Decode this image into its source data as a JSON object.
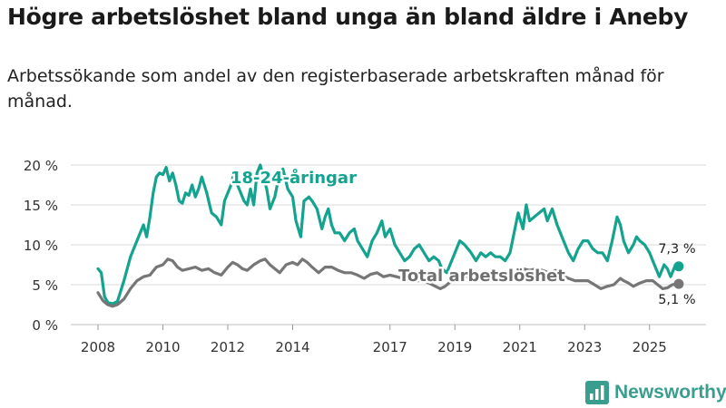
{
  "title": "Högre arbetslöshet bland unga än bland äldre i Aneby",
  "subtitle": "Arbetssökande som andel av den registerbaserade arbetskraften månad för månad.",
  "brand": "Newsworthy",
  "colors": {
    "youth": "#14a38f",
    "total": "#767676",
    "grid": "#d9d9d9",
    "brand": "#3a9e8f"
  },
  "chart_data": {
    "type": "line",
    "title": "",
    "xlabel": "",
    "ylabel": "",
    "ylim": [
      0,
      20
    ],
    "xlim": [
      2008,
      2026.6
    ],
    "grid": true,
    "y_ticks": [
      0,
      5,
      10,
      15,
      20
    ],
    "y_tick_labels": [
      "0 %",
      "5 %",
      "10 %",
      "15 %",
      "20 %"
    ],
    "x_ticks": [
      2008,
      2010,
      2012,
      2014,
      2017,
      2019,
      2021,
      2023,
      2025
    ],
    "x_tick_labels": [
      "2008",
      "2010",
      "2012",
      "2014",
      "2017",
      "2019",
      "2021",
      "2023",
      "2025"
    ],
    "series": [
      {
        "name": "18-24-åringar",
        "color": "#14a38f",
        "end_label": "7,3 %",
        "points": [
          [
            2008.0,
            7.0
          ],
          [
            2008.1,
            6.5
          ],
          [
            2008.2,
            3.5
          ],
          [
            2008.3,
            2.8
          ],
          [
            2008.45,
            2.6
          ],
          [
            2008.6,
            2.9
          ],
          [
            2008.8,
            5.5
          ],
          [
            2009.0,
            8.5
          ],
          [
            2009.2,
            10.5
          ],
          [
            2009.4,
            12.5
          ],
          [
            2009.5,
            11.0
          ],
          [
            2009.6,
            13.5
          ],
          [
            2009.7,
            16.5
          ],
          [
            2009.8,
            18.5
          ],
          [
            2009.9,
            19.0
          ],
          [
            2010.0,
            18.8
          ],
          [
            2010.1,
            19.7
          ],
          [
            2010.2,
            18.0
          ],
          [
            2010.3,
            19.0
          ],
          [
            2010.4,
            17.5
          ],
          [
            2010.5,
            15.5
          ],
          [
            2010.6,
            15.2
          ],
          [
            2010.7,
            16.5
          ],
          [
            2010.8,
            16.2
          ],
          [
            2010.9,
            17.5
          ],
          [
            2011.0,
            16.0
          ],
          [
            2011.1,
            17.0
          ],
          [
            2011.2,
            18.5
          ],
          [
            2011.35,
            16.5
          ],
          [
            2011.5,
            14.0
          ],
          [
            2011.65,
            13.5
          ],
          [
            2011.8,
            12.5
          ],
          [
            2011.9,
            15.5
          ],
          [
            2012.0,
            16.5
          ],
          [
            2012.1,
            17.5
          ],
          [
            2012.2,
            19.2
          ],
          [
            2012.3,
            17.5
          ],
          [
            2012.4,
            16.5
          ],
          [
            2012.5,
            15.5
          ],
          [
            2012.6,
            15.0
          ],
          [
            2012.7,
            17.0
          ],
          [
            2012.8,
            15.0
          ],
          [
            2012.9,
            19.0
          ],
          [
            2013.0,
            20.0
          ],
          [
            2013.1,
            18.5
          ],
          [
            2013.2,
            17.0
          ],
          [
            2013.3,
            14.5
          ],
          [
            2013.45,
            16.0
          ],
          [
            2013.55,
            18.0
          ],
          [
            2013.7,
            19.5
          ],
          [
            2013.85,
            17.0
          ],
          [
            2014.0,
            16.0
          ],
          [
            2014.1,
            13.0
          ],
          [
            2014.25,
            11.0
          ],
          [
            2014.35,
            15.5
          ],
          [
            2014.5,
            16.0
          ],
          [
            2014.6,
            15.5
          ],
          [
            2014.75,
            14.5
          ],
          [
            2014.9,
            12.0
          ],
          [
            2015.0,
            13.5
          ],
          [
            2015.1,
            14.5
          ],
          [
            2015.2,
            12.5
          ],
          [
            2015.3,
            11.5
          ],
          [
            2015.45,
            11.5
          ],
          [
            2015.6,
            10.5
          ],
          [
            2015.75,
            11.5
          ],
          [
            2015.9,
            12.0
          ],
          [
            2016.0,
            10.5
          ],
          [
            2016.15,
            9.5
          ],
          [
            2016.3,
            8.5
          ],
          [
            2016.45,
            10.5
          ],
          [
            2016.6,
            11.5
          ],
          [
            2016.75,
            13.0
          ],
          [
            2016.85,
            11.0
          ],
          [
            2017.0,
            12.0
          ],
          [
            2017.15,
            10.0
          ],
          [
            2017.3,
            9.0
          ],
          [
            2017.45,
            8.0
          ],
          [
            2017.6,
            8.5
          ],
          [
            2017.75,
            9.5
          ],
          [
            2017.9,
            10.0
          ],
          [
            2018.05,
            9.0
          ],
          [
            2018.2,
            8.0
          ],
          [
            2018.35,
            8.5
          ],
          [
            2018.5,
            8.0
          ],
          [
            2018.6,
            7.0
          ],
          [
            2018.75,
            6.5
          ],
          [
            2018.9,
            8.0
          ],
          [
            2019.0,
            9.0
          ],
          [
            2019.15,
            10.5
          ],
          [
            2019.3,
            10.0
          ],
          [
            2019.5,
            9.0
          ],
          [
            2019.65,
            8.0
          ],
          [
            2019.8,
            9.0
          ],
          [
            2019.95,
            8.5
          ],
          [
            2020.1,
            9.0
          ],
          [
            2020.25,
            8.5
          ],
          [
            2020.4,
            8.5
          ],
          [
            2020.55,
            8.0
          ],
          [
            2020.7,
            9.0
          ],
          [
            2020.85,
            12.0
          ],
          [
            2020.95,
            14.0
          ],
          [
            2021.1,
            12.0
          ],
          [
            2021.2,
            15.0
          ],
          [
            2021.3,
            13.0
          ],
          [
            2021.45,
            13.5
          ],
          [
            2021.6,
            14.0
          ],
          [
            2021.75,
            14.5
          ],
          [
            2021.85,
            13.0
          ],
          [
            2022.0,
            14.5
          ],
          [
            2022.15,
            12.5
          ],
          [
            2022.3,
            11.0
          ],
          [
            2022.4,
            10.0
          ],
          [
            2022.5,
            9.0
          ],
          [
            2022.65,
            8.0
          ],
          [
            2022.8,
            9.5
          ],
          [
            2022.95,
            10.5
          ],
          [
            2023.1,
            10.5
          ],
          [
            2023.25,
            9.5
          ],
          [
            2023.4,
            9.0
          ],
          [
            2023.55,
            9.0
          ],
          [
            2023.7,
            8.0
          ],
          [
            2023.85,
            10.5
          ],
          [
            2024.0,
            13.5
          ],
          [
            2024.1,
            12.5
          ],
          [
            2024.2,
            10.5
          ],
          [
            2024.35,
            9.0
          ],
          [
            2024.5,
            10.0
          ],
          [
            2024.6,
            11.0
          ],
          [
            2024.7,
            10.5
          ],
          [
            2024.85,
            10.0
          ],
          [
            2025.0,
            9.0
          ],
          [
            2025.1,
            8.0
          ],
          [
            2025.2,
            7.0
          ],
          [
            2025.3,
            6.0
          ],
          [
            2025.45,
            7.5
          ],
          [
            2025.55,
            7.0
          ],
          [
            2025.65,
            6.0
          ],
          [
            2025.8,
            7.5
          ],
          [
            2025.9,
            7.3
          ]
        ]
      },
      {
        "name": "Total arbetslöshet",
        "color": "#767676",
        "end_label": "5,1 %",
        "points": [
          [
            2008.0,
            4.0
          ],
          [
            2008.15,
            3.0
          ],
          [
            2008.3,
            2.5
          ],
          [
            2008.45,
            2.3
          ],
          [
            2008.6,
            2.5
          ],
          [
            2008.8,
            3.2
          ],
          [
            2009.0,
            4.5
          ],
          [
            2009.2,
            5.5
          ],
          [
            2009.4,
            6.0
          ],
          [
            2009.6,
            6.2
          ],
          [
            2009.8,
            7.2
          ],
          [
            2010.0,
            7.5
          ],
          [
            2010.15,
            8.2
          ],
          [
            2010.3,
            8.0
          ],
          [
            2010.45,
            7.2
          ],
          [
            2010.6,
            6.8
          ],
          [
            2010.8,
            7.0
          ],
          [
            2011.0,
            7.2
          ],
          [
            2011.2,
            6.8
          ],
          [
            2011.4,
            7.0
          ],
          [
            2011.6,
            6.5
          ],
          [
            2011.8,
            6.2
          ],
          [
            2012.0,
            7.2
          ],
          [
            2012.15,
            7.8
          ],
          [
            2012.3,
            7.5
          ],
          [
            2012.45,
            7.0
          ],
          [
            2012.6,
            6.8
          ],
          [
            2012.8,
            7.5
          ],
          [
            2013.0,
            8.0
          ],
          [
            2013.15,
            8.2
          ],
          [
            2013.3,
            7.5
          ],
          [
            2013.45,
            7.0
          ],
          [
            2013.6,
            6.5
          ],
          [
            2013.8,
            7.5
          ],
          [
            2014.0,
            7.8
          ],
          [
            2014.15,
            7.5
          ],
          [
            2014.3,
            8.2
          ],
          [
            2014.45,
            7.8
          ],
          [
            2014.6,
            7.2
          ],
          [
            2014.8,
            6.5
          ],
          [
            2015.0,
            7.2
          ],
          [
            2015.2,
            7.2
          ],
          [
            2015.4,
            6.8
          ],
          [
            2015.6,
            6.5
          ],
          [
            2015.8,
            6.5
          ],
          [
            2016.0,
            6.2
          ],
          [
            2016.2,
            5.8
          ],
          [
            2016.4,
            6.3
          ],
          [
            2016.6,
            6.5
          ],
          [
            2016.8,
            6.0
          ],
          [
            2017.0,
            6.2
          ],
          [
            2017.2,
            6.0
          ],
          [
            2017.4,
            5.8
          ],
          [
            2017.6,
            5.8
          ],
          [
            2017.8,
            5.5
          ],
          [
            2018.0,
            5.5
          ],
          [
            2018.2,
            5.2
          ],
          [
            2018.4,
            4.8
          ],
          [
            2018.55,
            4.5
          ],
          [
            2018.7,
            4.8
          ],
          [
            2018.9,
            5.5
          ],
          [
            2019.1,
            6.0
          ],
          [
            2019.3,
            6.2
          ],
          [
            2019.5,
            5.8
          ],
          [
            2019.7,
            5.5
          ],
          [
            2019.9,
            5.8
          ],
          [
            2020.1,
            5.8
          ],
          [
            2020.3,
            5.5
          ],
          [
            2020.5,
            5.5
          ],
          [
            2020.7,
            5.8
          ],
          [
            2020.9,
            6.5
          ],
          [
            2021.1,
            7.0
          ],
          [
            2021.3,
            6.8
          ],
          [
            2021.5,
            7.0
          ],
          [
            2021.7,
            6.8
          ],
          [
            2021.9,
            6.5
          ],
          [
            2022.1,
            6.8
          ],
          [
            2022.3,
            6.2
          ],
          [
            2022.5,
            5.8
          ],
          [
            2022.7,
            5.5
          ],
          [
            2022.9,
            5.5
          ],
          [
            2023.1,
            5.5
          ],
          [
            2023.3,
            5.0
          ],
          [
            2023.5,
            4.5
          ],
          [
            2023.7,
            4.8
          ],
          [
            2023.9,
            5.0
          ],
          [
            2024.1,
            5.8
          ],
          [
            2024.2,
            5.5
          ],
          [
            2024.35,
            5.2
          ],
          [
            2024.5,
            4.8
          ],
          [
            2024.7,
            5.2
          ],
          [
            2024.9,
            5.5
          ],
          [
            2025.1,
            5.5
          ],
          [
            2025.25,
            5.0
          ],
          [
            2025.4,
            4.5
          ],
          [
            2025.55,
            4.6
          ],
          [
            2025.7,
            5.0
          ],
          [
            2025.9,
            5.1
          ]
        ]
      }
    ],
    "annotations": [
      {
        "text": "18-24-åringar",
        "series": "18-24-åringar"
      },
      {
        "text": "Total arbetslöshet",
        "series": "Total arbetslöshet"
      }
    ]
  }
}
